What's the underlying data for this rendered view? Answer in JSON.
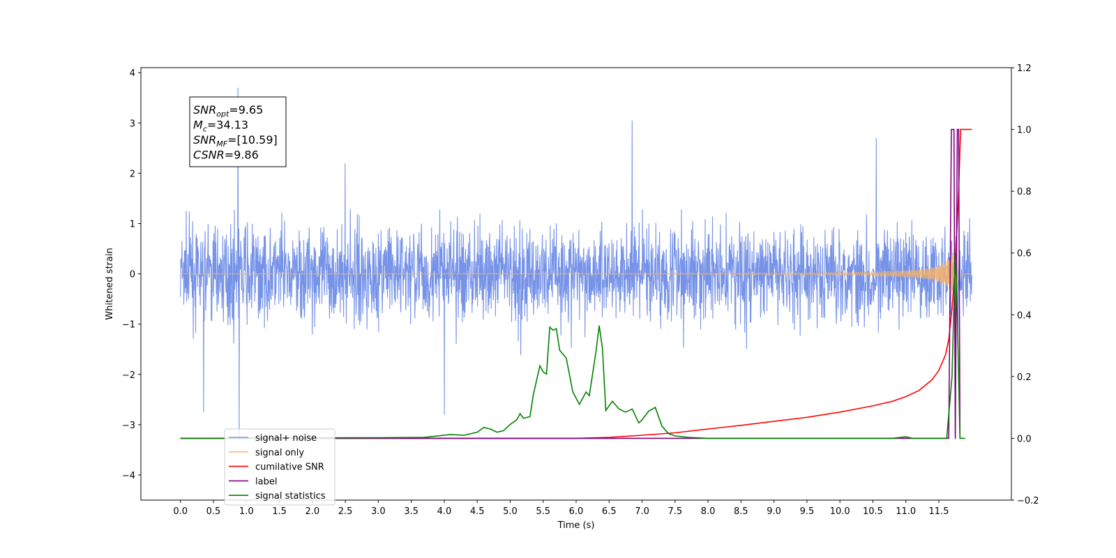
{
  "chart_data": {
    "type": "line",
    "title": "",
    "xlabel": "Time (s)",
    "ylabel_left": "Whitened strain",
    "ylabel_right": "",
    "xlim": [
      -0.6,
      12.6
    ],
    "ylim_left": [
      -4.5,
      4.1
    ],
    "ylim_right": [
      -0.2,
      1.2
    ],
    "grid": false,
    "legend_position": "lower-left",
    "x_ticks": [
      "0.0",
      "0.5",
      "1.0",
      "1.5",
      "2.0",
      "2.5",
      "3.0",
      "3.5",
      "4.0",
      "4.5",
      "5.0",
      "5.5",
      "6.0",
      "6.5",
      "7.0",
      "7.5",
      "8.0",
      "8.5",
      "9.0",
      "9.5",
      "10.0",
      "10.5",
      "11.0",
      "11.5"
    ],
    "y_ticks_left": [
      "4",
      "3",
      "2",
      "1",
      "0",
      "−1",
      "−2",
      "−3",
      "−4"
    ],
    "y_ticks_right": [
      "1.2",
      "1.0",
      "0.8",
      "0.6",
      "0.4",
      "0.2",
      "0.0",
      "−0.2"
    ],
    "stats": [
      {
        "sym": "SNR",
        "sub": "opt",
        "value": "=9.65"
      },
      {
        "sym": "M",
        "sub": "c",
        "value": "=34.13"
      },
      {
        "sym": "SNR",
        "sub": "MF",
        "value": "=[10.59]"
      },
      {
        "sym": "CSNR",
        "sub": "",
        "value": "=9.86"
      }
    ],
    "series": [
      {
        "name": "signal+ noise",
        "axis": "left",
        "color": "#6a8ae6",
        "kind": "noise",
        "x_range": [
          0.0,
          12.0
        ],
        "typical_amplitude": 1.0,
        "y_min": -3.3,
        "y_max": 3.7
      },
      {
        "name": "signal only",
        "axis": "left",
        "color": "#f5b26b",
        "kind": "chirp",
        "x_range": [
          0.0,
          12.0
        ],
        "peak_time": 11.8,
        "peak_amplitude": 1.2
      },
      {
        "name": "cumilative SNR",
        "axis": "right",
        "color": "#ff0000",
        "x": [
          0.0,
          6.0,
          6.5,
          7.0,
          7.5,
          8.0,
          8.5,
          9.0,
          9.5,
          10.0,
          10.5,
          10.8,
          11.0,
          11.2,
          11.4,
          11.5,
          11.6,
          11.65,
          11.7,
          11.75,
          11.8,
          11.83,
          12.0
        ],
        "y": [
          0.0,
          0.0,
          0.003,
          0.01,
          0.018,
          0.03,
          0.042,
          0.055,
          0.068,
          0.085,
          0.105,
          0.12,
          0.135,
          0.155,
          0.19,
          0.22,
          0.27,
          0.32,
          0.42,
          0.56,
          0.8,
          1.0,
          1.0
        ]
      },
      {
        "name": "label",
        "axis": "right",
        "color": "#800080",
        "x": [
          0.0,
          11.65,
          11.69,
          11.73,
          11.75,
          11.78,
          11.8,
          11.82
        ],
        "y": [
          0.0,
          0.0,
          1.0,
          1.0,
          0.0,
          1.0,
          1.0,
          0.0
        ]
      },
      {
        "name": "signal statistics",
        "axis": "right",
        "color": "#008000",
        "x": [
          0.0,
          3.0,
          3.7,
          4.0,
          4.1,
          4.3,
          4.5,
          4.6,
          4.7,
          4.8,
          4.9,
          5.0,
          5.1,
          5.15,
          5.2,
          5.3,
          5.35,
          5.45,
          5.5,
          5.55,
          5.6,
          5.65,
          5.7,
          5.75,
          5.85,
          5.95,
          6.05,
          6.15,
          6.2,
          6.3,
          6.35,
          6.4,
          6.45,
          6.55,
          6.65,
          6.75,
          6.85,
          6.95,
          7.0,
          7.1,
          7.2,
          7.3,
          7.4,
          7.5,
          7.7,
          8.0,
          9.0,
          10.0,
          10.8,
          11.0,
          11.1,
          11.5,
          11.62,
          11.7,
          11.75,
          11.78,
          11.82,
          11.9
        ],
        "y": [
          0.0,
          0.002,
          0.003,
          0.01,
          0.012,
          0.01,
          0.02,
          0.035,
          0.03,
          0.02,
          0.025,
          0.045,
          0.06,
          0.08,
          0.065,
          0.07,
          0.14,
          0.235,
          0.215,
          0.208,
          0.36,
          0.35,
          0.355,
          0.285,
          0.26,
          0.15,
          0.11,
          0.15,
          0.138,
          0.28,
          0.365,
          0.29,
          0.09,
          0.12,
          0.095,
          0.085,
          0.095,
          0.05,
          0.06,
          0.088,
          0.1,
          0.04,
          0.015,
          0.008,
          0.003,
          0.0,
          0.0,
          0.0,
          0.0,
          0.005,
          0.0,
          0.0,
          0.0,
          0.2,
          0.6,
          0.4,
          0.0,
          0.0
        ]
      }
    ]
  }
}
